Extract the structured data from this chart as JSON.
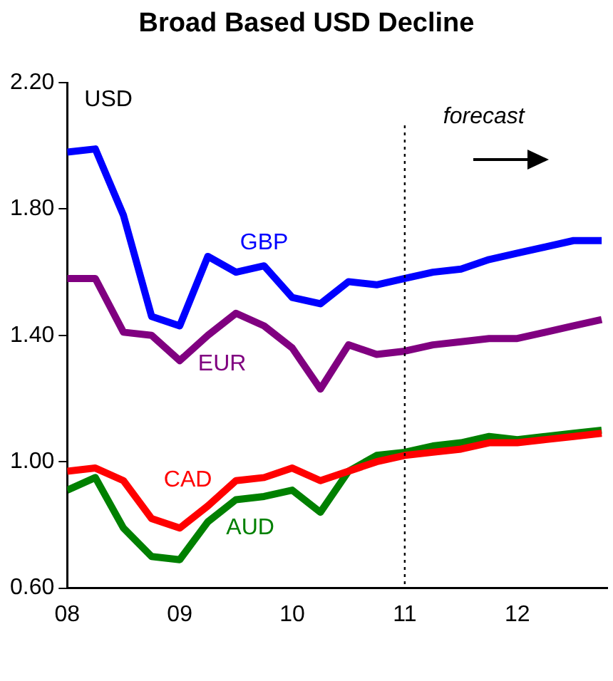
{
  "chart_data": {
    "type": "line",
    "title": "Broad Based USD Decline",
    "ylabel": "USD",
    "x": [
      2008,
      2008.25,
      2008.5,
      2008.75,
      2009,
      2009.25,
      2009.5,
      2009.75,
      2010,
      2010.25,
      2010.5,
      2010.75,
      2011,
      2011.25,
      2011.5,
      2011.75,
      2012,
      2012.25,
      2012.5,
      2012.75
    ],
    "series": [
      {
        "name": "GBP",
        "color": "#0000ff",
        "values": [
          1.98,
          1.99,
          1.78,
          1.46,
          1.43,
          1.65,
          1.6,
          1.62,
          1.52,
          1.5,
          1.57,
          1.56,
          1.58,
          1.6,
          1.61,
          1.64,
          1.66,
          1.68,
          1.7,
          1.7
        ]
      },
      {
        "name": "EUR",
        "color": "#800080",
        "values": [
          1.58,
          1.58,
          1.41,
          1.4,
          1.32,
          1.4,
          1.47,
          1.43,
          1.36,
          1.23,
          1.37,
          1.34,
          1.35,
          1.37,
          1.38,
          1.39,
          1.39,
          1.41,
          1.43,
          1.45
        ]
      },
      {
        "name": "CAD",
        "color": "#ff0000",
        "values": [
          0.97,
          0.98,
          0.94,
          0.82,
          0.79,
          0.86,
          0.94,
          0.95,
          0.98,
          0.94,
          0.97,
          1.0,
          1.02,
          1.03,
          1.04,
          1.06,
          1.06,
          1.07,
          1.08,
          1.09
        ]
      },
      {
        "name": "AUD",
        "color": "#008000",
        "values": [
          0.91,
          0.95,
          0.79,
          0.7,
          0.69,
          0.81,
          0.88,
          0.89,
          0.91,
          0.84,
          0.97,
          1.02,
          1.03,
          1.05,
          1.06,
          1.08,
          1.07,
          1.08,
          1.09,
          1.1
        ]
      }
    ],
    "xlim": [
      2008,
      2012.8
    ],
    "xticks": [
      {
        "value": 2008,
        "label": "08"
      },
      {
        "value": 2009,
        "label": "09"
      },
      {
        "value": 2010,
        "label": "10"
      },
      {
        "value": 2011,
        "label": "11"
      },
      {
        "value": 2012,
        "label": "12"
      }
    ],
    "ylim": [
      0.6,
      2.2
    ],
    "yticks": [
      {
        "value": 0.6,
        "label": "0.60"
      },
      {
        "value": 1.0,
        "label": "1.00"
      },
      {
        "value": 1.4,
        "label": "1.40"
      },
      {
        "value": 1.8,
        "label": "1.80"
      },
      {
        "value": 2.2,
        "label": "2.20"
      }
    ],
    "ref_lines": [
      {
        "axis": "x",
        "value": 2011,
        "label": "forecast",
        "color": "#000000",
        "line_style": "dotted"
      }
    ],
    "grid": false,
    "legend": false,
    "marker": "none",
    "line_style": "solid"
  }
}
